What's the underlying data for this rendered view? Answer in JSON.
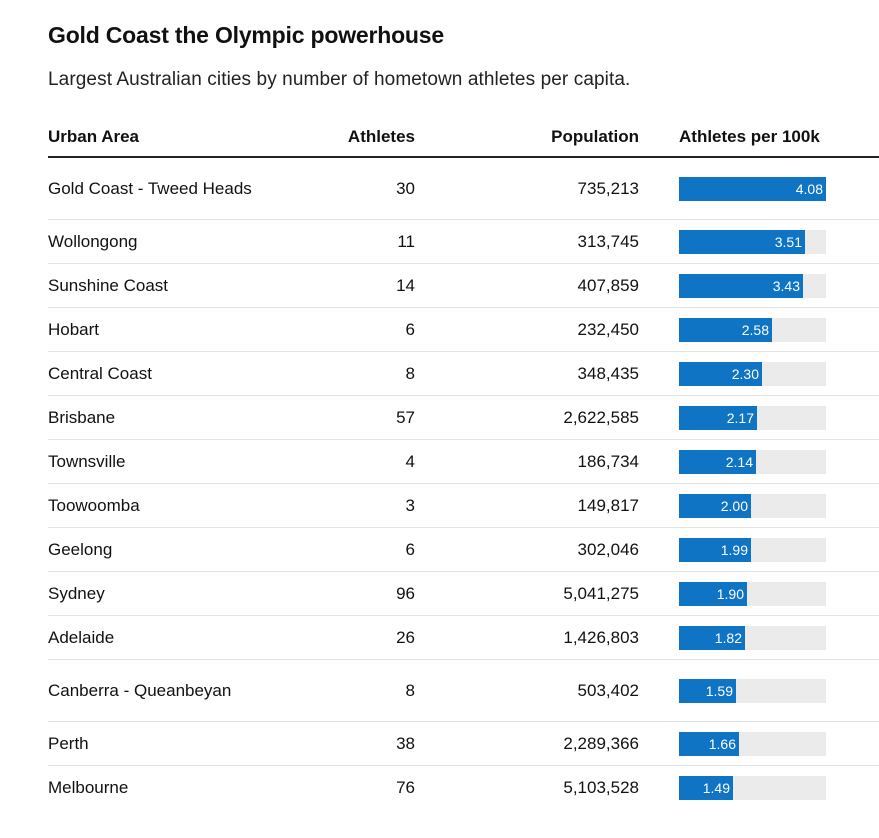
{
  "chart_data": {
    "type": "table",
    "title": "Gold Coast the Olympic powerhouse",
    "subtitle": "Largest Australian cities by number of hometown athletes per capita.",
    "columns": [
      "Urban Area",
      "Athletes",
      "Population",
      "Athletes per 100k"
    ],
    "bar_color": "#0f74c4",
    "bar_track_color": "#ebebeb",
    "bar_max": 4.08,
    "rows": [
      {
        "area": "Gold Coast - Tweed Heads",
        "athletes": "30",
        "population": "735,213",
        "per100k": 4.08,
        "per100k_label": "4.08"
      },
      {
        "area": "Wollongong",
        "athletes": "11",
        "population": "313,745",
        "per100k": 3.51,
        "per100k_label": "3.51"
      },
      {
        "area": "Sunshine Coast",
        "athletes": "14",
        "population": "407,859",
        "per100k": 3.43,
        "per100k_label": "3.43"
      },
      {
        "area": "Hobart",
        "athletes": "6",
        "population": "232,450",
        "per100k": 2.58,
        "per100k_label": "2.58"
      },
      {
        "area": "Central Coast",
        "athletes": "8",
        "population": "348,435",
        "per100k": 2.3,
        "per100k_label": "2.30"
      },
      {
        "area": "Brisbane",
        "athletes": "57",
        "population": "2,622,585",
        "per100k": 2.17,
        "per100k_label": "2.17"
      },
      {
        "area": "Townsville",
        "athletes": "4",
        "population": "186,734",
        "per100k": 2.14,
        "per100k_label": "2.14"
      },
      {
        "area": "Toowoomba",
        "athletes": "3",
        "population": "149,817",
        "per100k": 2.0,
        "per100k_label": "2.00"
      },
      {
        "area": "Geelong",
        "athletes": "6",
        "population": "302,046",
        "per100k": 1.99,
        "per100k_label": "1.99"
      },
      {
        "area": "Sydney",
        "athletes": "96",
        "population": "5,041,275",
        "per100k": 1.9,
        "per100k_label": "1.90"
      },
      {
        "area": "Adelaide",
        "athletes": "26",
        "population": "1,426,803",
        "per100k": 1.82,
        "per100k_label": "1.82"
      },
      {
        "area": "Canberra - Queanbeyan",
        "athletes": "8",
        "population": "503,402",
        "per100k": 1.59,
        "per100k_label": "1.59"
      },
      {
        "area": "Perth",
        "athletes": "38",
        "population": "2,289,366",
        "per100k": 1.66,
        "per100k_label": "1.66"
      },
      {
        "area": "Melbourne",
        "athletes": "76",
        "population": "5,103,528",
        "per100k": 1.49,
        "per100k_label": "1.49"
      }
    ]
  }
}
